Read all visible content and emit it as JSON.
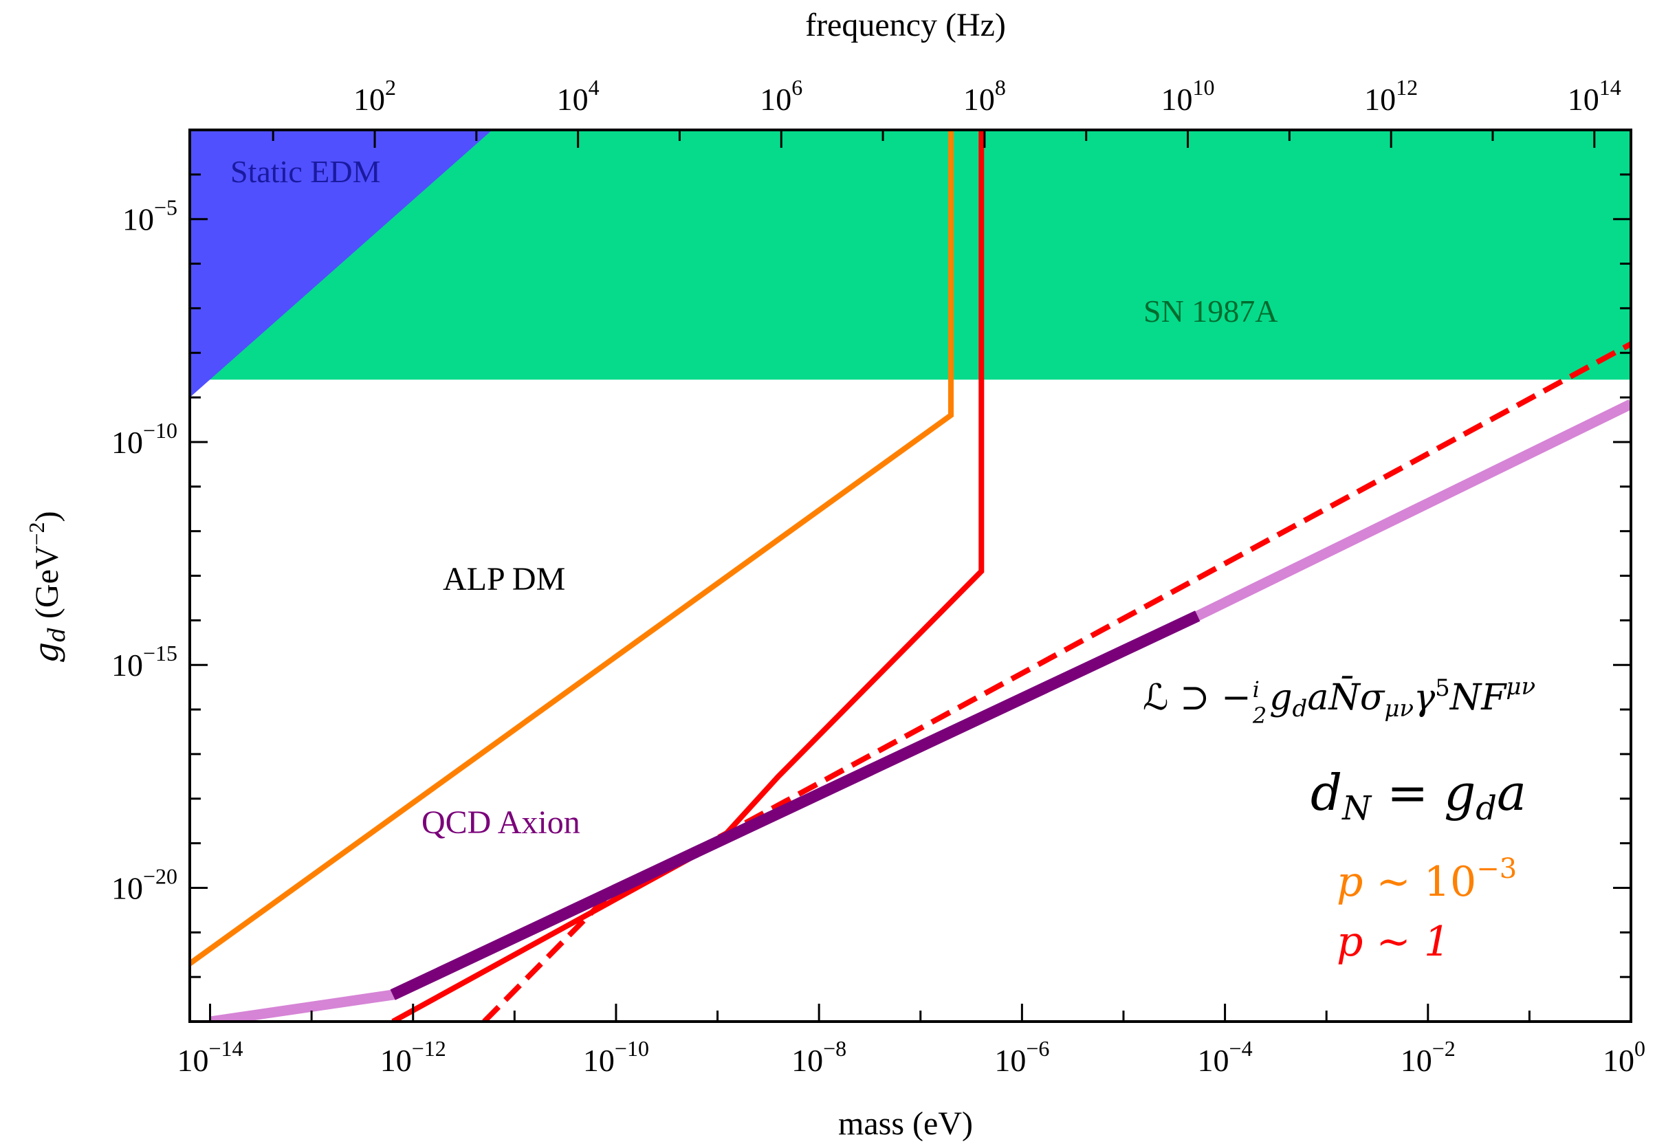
{
  "chart_data": {
    "type": "line",
    "xlabel": "mass (eV)",
    "ylabel_main": "g",
    "ylabel_sub": "d",
    "ylabel_unit_pre": " (GeV",
    "ylabel_unit_exp": "−2",
    "ylabel_unit_post": ")",
    "top_xlabel": "frequency (Hz)",
    "xscale": "log",
    "yscale": "log",
    "xlim_log10": [
      -14.2,
      0
    ],
    "ylim_log10": [
      -23,
      -3
    ],
    "top_xlim_log10": [
      0.18,
      14.36
    ],
    "grid": false,
    "x_ticks": [
      {
        "base": "10",
        "exp": "−14"
      },
      {
        "base": "10",
        "exp": "−12"
      },
      {
        "base": "10",
        "exp": "−10"
      },
      {
        "base": "10",
        "exp": "−8"
      },
      {
        "base": "10",
        "exp": "−6"
      },
      {
        "base": "10",
        "exp": "−4"
      },
      {
        "base": "10",
        "exp": "−2"
      },
      {
        "base": "10",
        "exp": "0"
      }
    ],
    "x_tick_values_log10": [
      -14,
      -12,
      -10,
      -8,
      -6,
      -4,
      -2,
      0
    ],
    "y_ticks": [
      {
        "base": "10",
        "exp": "−5"
      },
      {
        "base": "10",
        "exp": "−10"
      },
      {
        "base": "10",
        "exp": "−15"
      },
      {
        "base": "10",
        "exp": "−20"
      }
    ],
    "y_tick_values_log10": [
      -5,
      -10,
      -15,
      -20
    ],
    "top_ticks": [
      {
        "base": "10",
        "exp": "2"
      },
      {
        "base": "10",
        "exp": "4"
      },
      {
        "base": "10",
        "exp": "6"
      },
      {
        "base": "10",
        "exp": "8"
      },
      {
        "base": "10",
        "exp": "10"
      },
      {
        "base": "10",
        "exp": "12"
      },
      {
        "base": "10",
        "exp": "14"
      }
    ],
    "top_tick_values_log10": [
      2,
      4,
      6,
      8,
      10,
      12,
      14
    ],
    "regions": [
      {
        "name": "SN 1987A",
        "color": "#05db8b",
        "polygon_log10": [
          [
            -14.2,
            -8.6
          ],
          [
            0,
            -8.6
          ],
          [
            0,
            -3
          ],
          [
            -14.2,
            -3
          ]
        ]
      },
      {
        "name": "Static EDM",
        "color": "#5050ff",
        "polygon_log10": [
          [
            -14.2,
            -3
          ],
          [
            -11.22,
            -3
          ],
          [
            -14.2,
            -9.0
          ]
        ]
      }
    ],
    "series": [
      {
        "color": "#ff8000",
        "style": "solid",
        "points_log10": [
          [
            -14.2,
            -21.7
          ],
          [
            -6.7,
            -9.4
          ],
          [
            -6.7,
            -3
          ]
        ]
      },
      {
        "color": "#ff0000",
        "style": "solid",
        "points_log10": [
          [
            -12.2,
            -23
          ],
          [
            -9.0,
            -19.0
          ],
          [
            -8.4,
            -17.5
          ],
          [
            -6.4,
            -12.9
          ],
          [
            -6.4,
            -3
          ]
        ]
      },
      {
        "color": "#ff0000",
        "style": "dashed",
        "points_log10": [
          [
            -11.3,
            -23
          ],
          [
            -10.0,
            -20.0
          ],
          [
            -9.5,
            -19.5
          ],
          [
            0,
            -7.8
          ]
        ]
      },
      {
        "color": "#d684d6",
        "style": "solid",
        "width": "light",
        "points_log10": [
          [
            -14.0,
            -23
          ],
          [
            -12.2,
            -22.4
          ],
          [
            -4.27,
            -13.9
          ],
          [
            0,
            -9.15
          ]
        ]
      },
      {
        "color": "#7a007a",
        "style": "solid",
        "width": "heavy",
        "points_log10": [
          [
            -12.2,
            -22.4
          ],
          [
            -4.27,
            -13.9
          ]
        ]
      }
    ],
    "annotations": {
      "static_edm": "Static EDM",
      "sn": "SN 1987A",
      "alp": "ALP DM",
      "qcd": "QCD Axion",
      "lagrangian": "ℒ ⊃ −",
      "lagrangian_frac_num": "i",
      "lagrangian_frac_den": "2",
      "lagrangian_rest": "g",
      "lagrangian_rest_sub": "d",
      "lagrangian_rest2": "aN̄σ",
      "lagrangian_sub2": "μν",
      "lagrangian_rest3": "γ",
      "lagrangian_sup3": "5",
      "lagrangian_rest4": "NF",
      "lagrangian_sup4": "μν",
      "dn_left": "d",
      "dn_left_sub": "N",
      "dn_mid": " = g",
      "dn_mid_sub": "d",
      "dn_right": "a",
      "p_orange_lhs": "p",
      "p_orange_rel": " ∼ 10",
      "p_orange_exp": "−3",
      "p_red": "p ∼ 1"
    },
    "colors": {
      "orange": "#ff8000",
      "red": "#ff0000",
      "sn": "#05db8b",
      "edm": "#5050ff",
      "qcd_dark": "#7a007a",
      "qcd_light": "#d684d6",
      "edm_text": "#1a1aa0",
      "sn_text": "#006b2e",
      "qcd_text": "#7a007a"
    }
  }
}
